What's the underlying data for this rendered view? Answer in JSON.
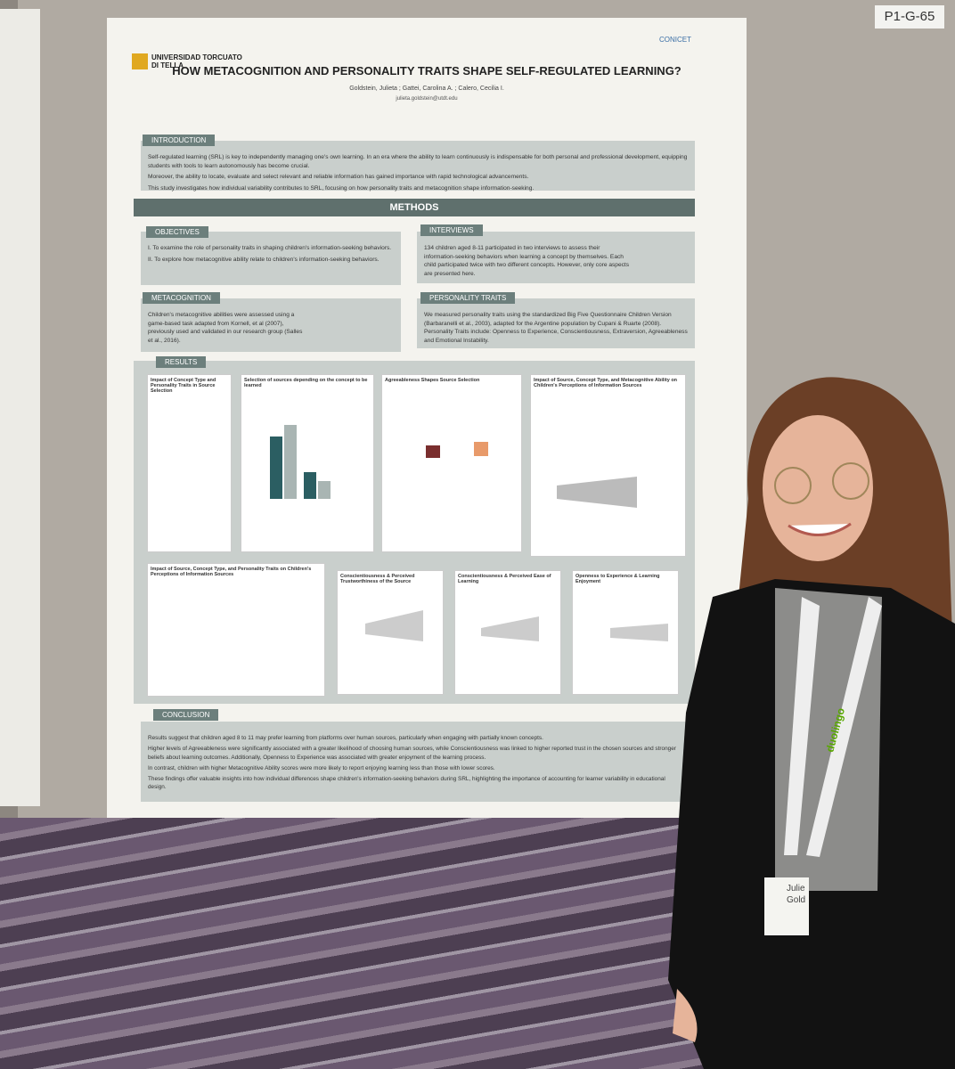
{
  "board_label": "P1-G-65",
  "poster": {
    "logo_left": "UNIVERSIDAD TORCUATO DI TELLA",
    "logo_right": "CONICET",
    "title": "HOW METACOGNITION AND PERSONALITY TRAITS SHAPE SELF-REGULATED LEARNING?",
    "authors": "Goldstein, Julieta ; Gattei, Carolina A. ; Calero, Cecilia I.",
    "email": "julieta.goldstein@utdt.edu",
    "introduction": {
      "heading": "INTRODUCTION",
      "paragraphs": [
        "Self-regulated learning (SRL) is key to independently managing one's own learning. In an era where the ability to learn continuously is indispensable for both personal and professional development, equipping students with tools to learn autonomously has become crucial.",
        "Moreover, the ability to locate, evaluate and select relevant and reliable information has gained importance with rapid technological advancements.",
        "This study investigates how individual variability contributes to SRL, focusing on how personality traits and metacognition shape information-seeking."
      ]
    },
    "methods_heading": "METHODS",
    "objectives": {
      "heading": "OBJECTIVES",
      "paragraphs": [
        "I. To examine the role of personality traits in shaping children's information-seeking behaviors.",
        "II. To explore how metacognitive ability relate to children's information-seeking behaviors."
      ]
    },
    "interviews": {
      "heading": "INTERVIEWS",
      "text": "134 children aged 8-11 participated in two interviews to assess their information-seeking behaviors when learning a concept by themselves. Each child participated twice with two different concepts. However, only core aspects are presented here."
    },
    "metacognition": {
      "heading": "METACOGNITION",
      "text": "Children's metacognitive abilities were assessed using a game-based task adapted from Kornell, et al (2007), previously used and validated in our research group (Salles et al., 2016)."
    },
    "personality": {
      "heading": "PERSONALITY TRAITS",
      "text": "We measured personality traits using the standardized Big Five Questionnaire Children Version (Barbaranelli et al., 2003), adapted for the Argentine population by Cupani & Ruarte (2008). Personality Traits include: Openness to Experience, Conscientiousness, Extraversion, Agreeableness and Emotional Instability."
    },
    "results": {
      "heading": "RESULTS",
      "panels": [
        "Impact of Concept Type and Personality Traits in Source Selection",
        "Selection of sources depending on the concept to be learned",
        "Agreeableness Shapes Source Selection",
        "Impact of Source, Concept Type, and Metacognitive Ability on Children's Perceptions of Information Sources",
        "Impact of Source, Concept Type, and Personality Traits on Children's Perceptions of Information Sources",
        "Conscientiousness & Perceived Trustworthiness of the Source",
        "Conscientiousness & Perceived Ease of Learning",
        "Openness to Experience & Learning Enjoyment"
      ]
    },
    "conclusion": {
      "heading": "CONCLUSION",
      "paragraphs": [
        "Results suggest that children aged 8 to 11 may prefer learning from platforms over human sources, particularly when engaging with partially known concepts.",
        "Higher levels of Agreeableness were significantly associated with a greater likelihood of choosing human sources, while Conscientiousness was linked to higher reported trust in the chosen sources and stronger beliefs about learning outcomes. Additionally, Openness to Experience was associated with greater enjoyment of the learning process.",
        "In contrast, children with higher Metacognitive Ability scores were more likely to report enjoying learning less than those with lower scores.",
        "These findings offer valuable insights into how individual differences shape children's information-seeking behaviors during SRL, highlighting the importance of accounting for learner variability in educational design."
      ]
    }
  },
  "lanyard": "duolingo",
  "badge": [
    "Julie",
    "Gold"
  ]
}
